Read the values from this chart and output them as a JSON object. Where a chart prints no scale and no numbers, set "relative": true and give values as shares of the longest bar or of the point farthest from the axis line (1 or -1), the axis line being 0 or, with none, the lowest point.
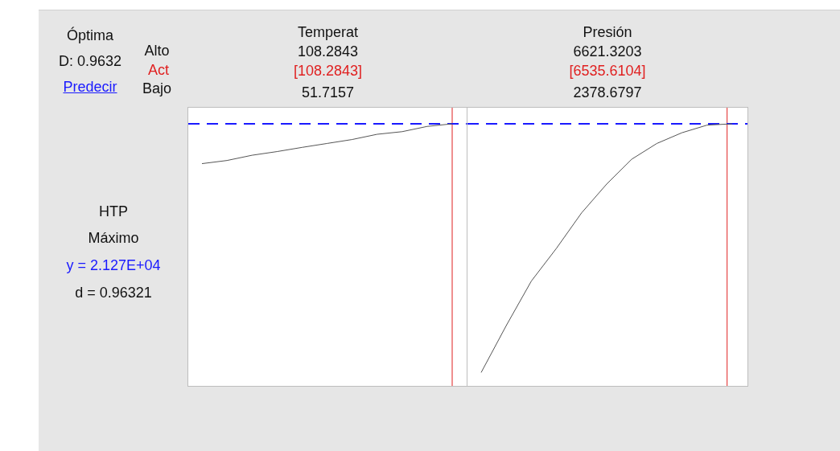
{
  "chart_data": [
    {
      "type": "line",
      "title": "Temperat",
      "relative": true,
      "color": "#555555",
      "categories": [
        null,
        null,
        null,
        null,
        null,
        null,
        null,
        null,
        null,
        null,
        null
      ],
      "values": [
        0.848,
        0.86,
        0.88,
        0.894,
        0.91,
        0.925,
        0.94,
        0.96,
        0.97,
        0.99,
        1.0
      ],
      "ref_lines": [
        {
          "axis": "y",
          "value": 1.0,
          "color": "#1a1aff",
          "line_style": "dashed"
        }
      ],
      "annotations": [
        "Óptima",
        "D: 0.9632",
        "Predecir",
        "Alto",
        "Act",
        "Bajo",
        "HTP",
        "Máximo",
        "y = 2.127E+04",
        "d = 0.96321",
        "108.2843",
        "[108.2843]",
        "51.7157"
      ]
    },
    {
      "type": "line",
      "title": "Presión",
      "relative": true,
      "color": "#555555",
      "categories": [
        null,
        null,
        null,
        null,
        null,
        null,
        null,
        null,
        null,
        null,
        null
      ],
      "values": [
        0.051,
        0.23,
        0.4,
        0.525,
        0.66,
        0.77,
        0.865,
        0.925,
        0.966,
        0.995,
        1.0
      ],
      "ref_lines": [
        {
          "axis": "y",
          "value": 1.0,
          "color": "#1a1aff",
          "line_style": "dashed"
        }
      ],
      "annotations": [
        "6621.3203",
        "[6535.6104]",
        "2378.6797"
      ]
    }
  ]
}
